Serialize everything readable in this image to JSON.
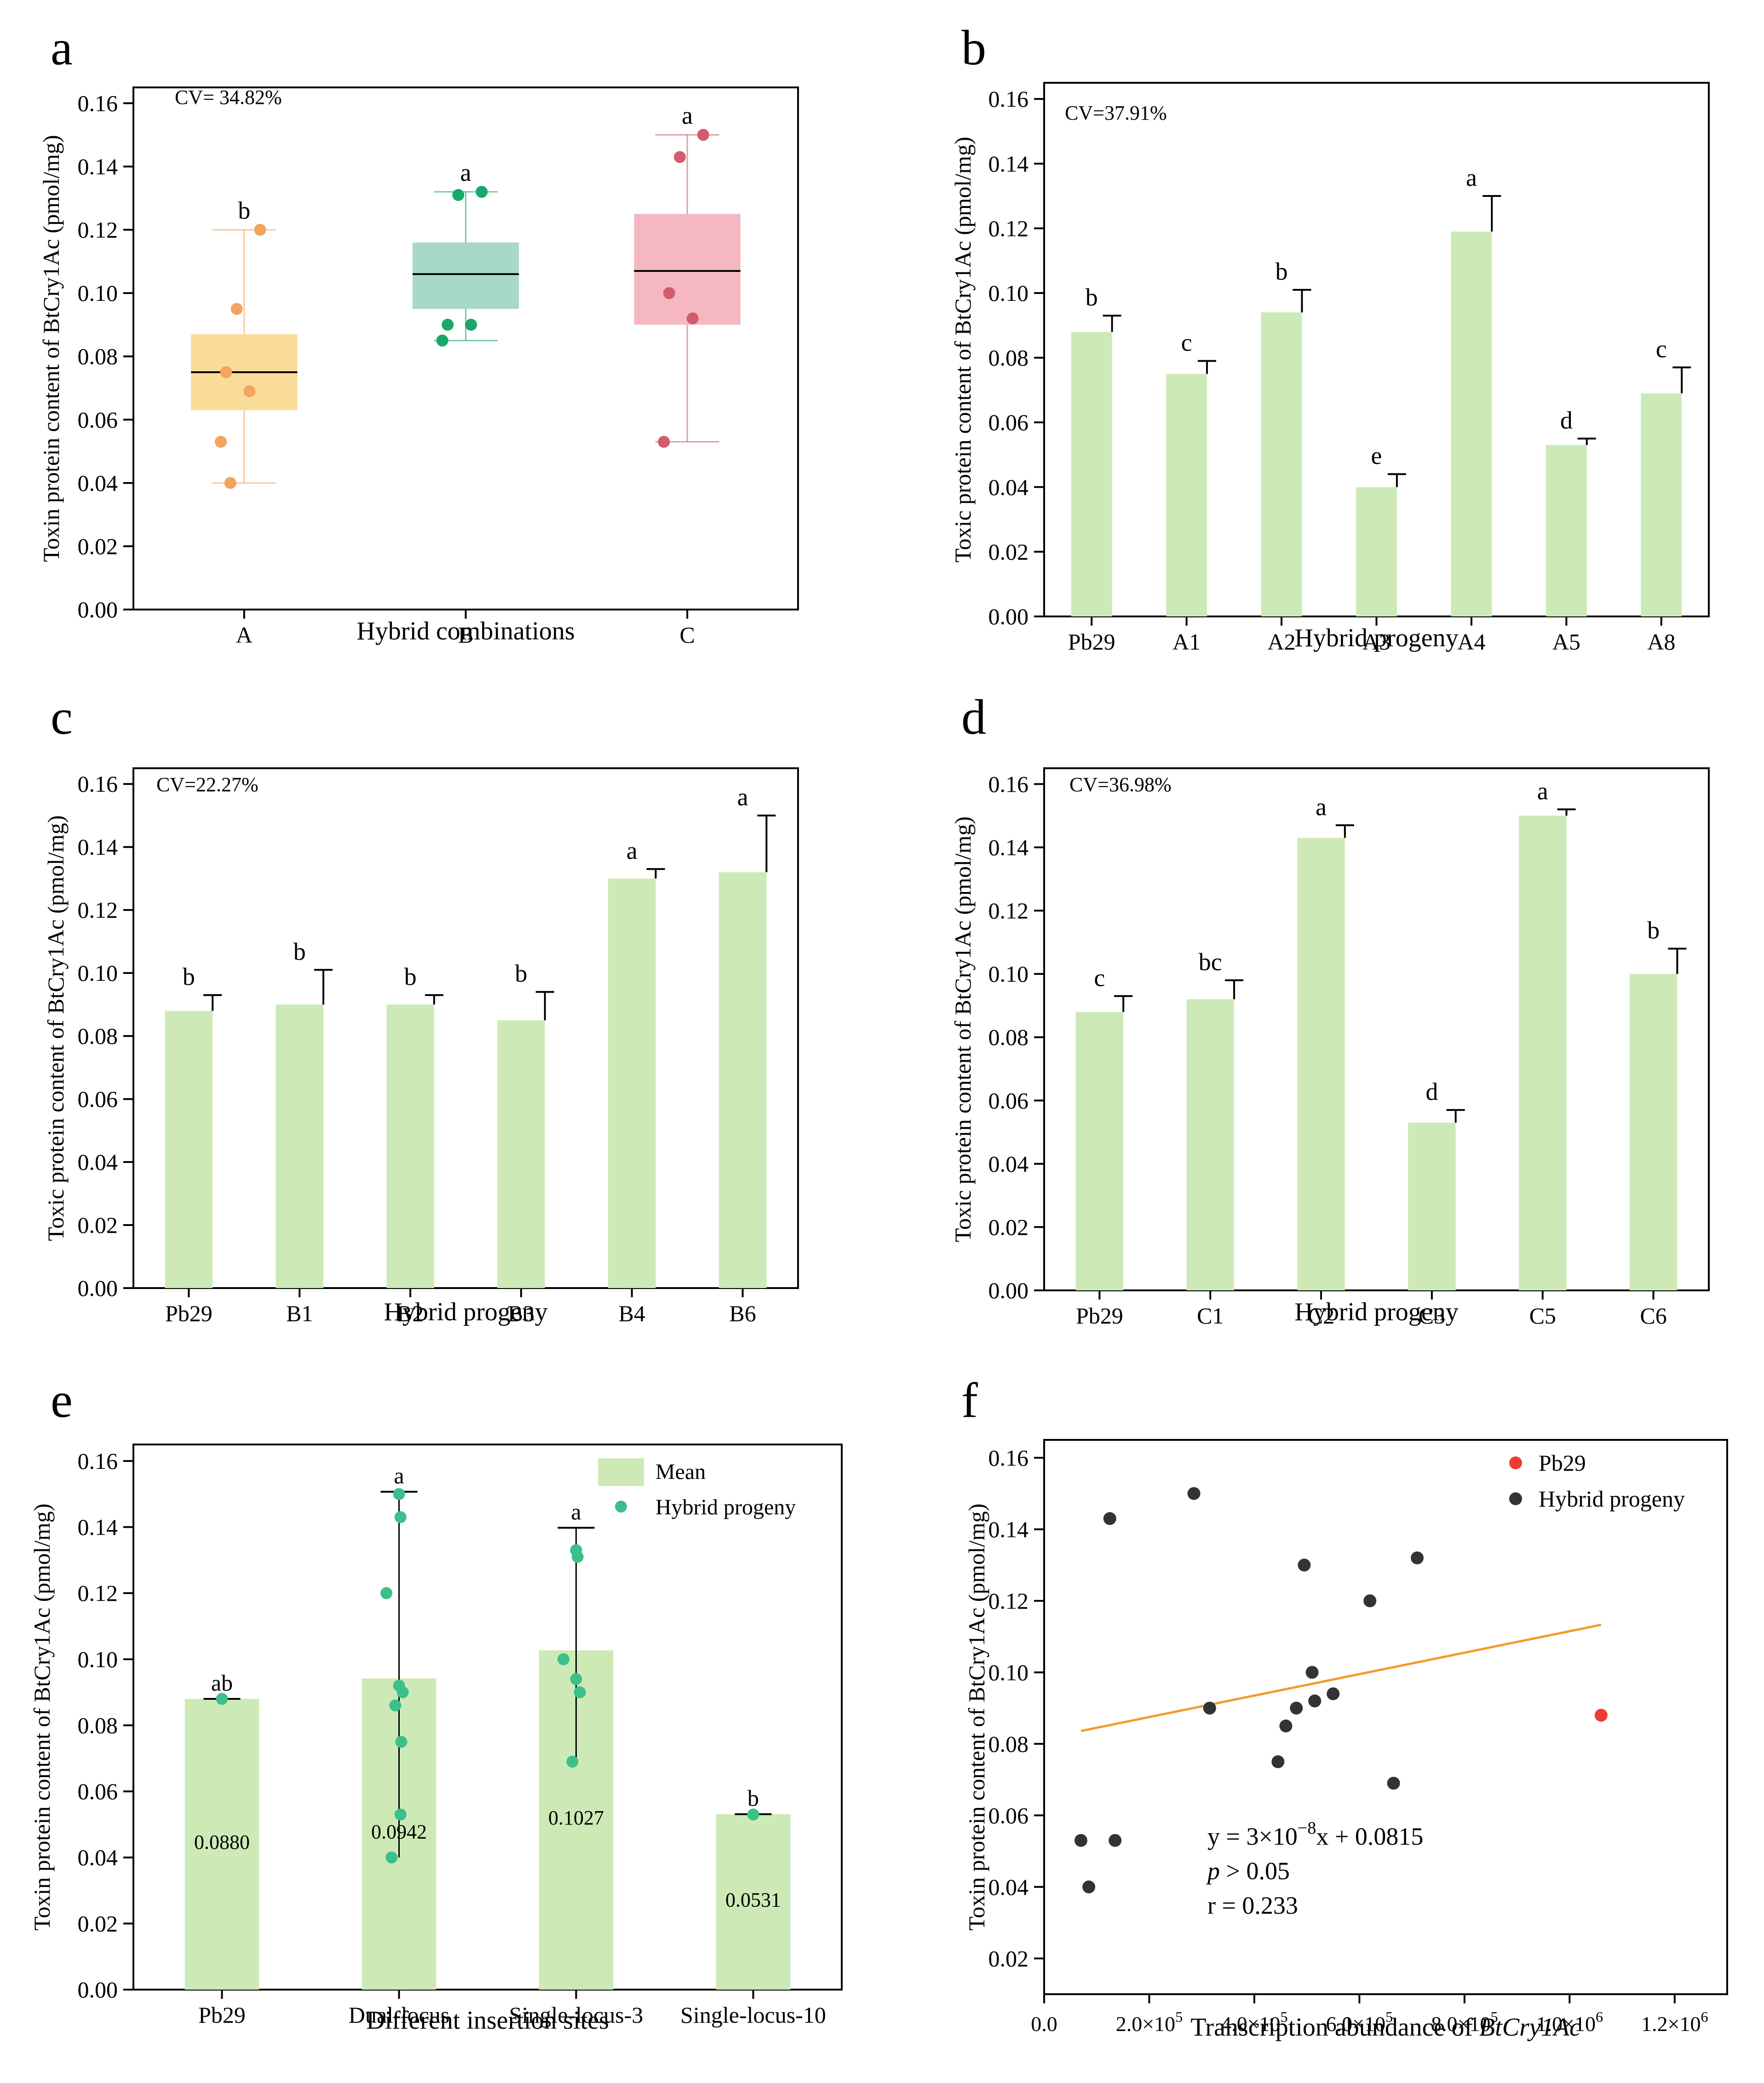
{
  "chart_data": [
    {
      "panel": "a",
      "type": "box",
      "ylabel": "Toxin protein content of BtCry1Ac (pmol/mg)",
      "xlabel": "Hybrid combinations",
      "cv": "CV= 34.82%",
      "ylim": [
        0,
        0.165
      ],
      "yticks": [
        0,
        0.02,
        0.04,
        0.06,
        0.08,
        0.1,
        0.12,
        0.14,
        0.16
      ],
      "ytick_labels": [
        "0.00",
        "0.02",
        "0.04",
        "0.06",
        "0.08",
        "0.10",
        "0.12",
        "0.14",
        "0.16"
      ],
      "categories": [
        "A",
        "B",
        "C"
      ],
      "boxes": [
        {
          "name": "A",
          "q1": 0.063,
          "median": 0.075,
          "q3": 0.087,
          "whisker_low": 0.04,
          "whisker_high": 0.12,
          "points": [
            0.12,
            0.095,
            0.075,
            0.069,
            0.053,
            0.04
          ],
          "letter": "b",
          "color": "#f9dc98",
          "point_color": "#f3a45e"
        },
        {
          "name": "B",
          "q1": 0.095,
          "median": 0.106,
          "q3": 0.116,
          "whisker_low": 0.085,
          "whisker_high": 0.132,
          "points": [
            0.132,
            0.131,
            0.09,
            0.09,
            0.085
          ],
          "letter": "a",
          "color": "#a8d9c6",
          "point_color": "#19a869"
        },
        {
          "name": "C",
          "q1": 0.09,
          "median": 0.107,
          "q3": 0.125,
          "whisker_low": 0.053,
          "whisker_high": 0.15,
          "points": [
            0.15,
            0.143,
            0.1,
            0.092,
            0.053
          ],
          "letter": "a",
          "color": "#f5b8c2",
          "point_color": "#cf5d6e"
        }
      ]
    },
    {
      "panel": "b",
      "type": "bar",
      "ylabel": "Toxic protein content of  BtCry1Ac (pmol/mg)",
      "xlabel": "Hybrid progeny",
      "cv": "CV=37.91%",
      "ylim": [
        0,
        0.165
      ],
      "yticks": [
        0,
        0.02,
        0.04,
        0.06,
        0.08,
        0.1,
        0.12,
        0.14,
        0.16
      ],
      "ytick_labels": [
        "0.00",
        "0.02",
        "0.04",
        "0.06",
        "0.08",
        "0.10",
        "0.12",
        "0.14",
        "0.16"
      ],
      "categories": [
        "Pb29",
        "A1",
        "A2",
        "A3",
        "A4",
        "A5",
        "A8"
      ],
      "values": [
        0.088,
        0.075,
        0.094,
        0.04,
        0.119,
        0.053,
        0.069
      ],
      "errors": [
        0.005,
        0.004,
        0.007,
        0.004,
        0.011,
        0.002,
        0.008
      ],
      "letters": [
        "b",
        "c",
        "b",
        "e",
        "a",
        "d",
        "c"
      ]
    },
    {
      "panel": "c",
      "type": "bar",
      "ylabel": "Toxic protein content of  BtCry1Ac (pmol/mg)",
      "xlabel": "Hybrid progeny",
      "cv": "CV=22.27%",
      "ylim": [
        0,
        0.165
      ],
      "yticks": [
        0,
        0.02,
        0.04,
        0.06,
        0.08,
        0.1,
        0.12,
        0.14,
        0.16
      ],
      "ytick_labels": [
        "0.00",
        "0.02",
        "0.04",
        "0.06",
        "0.08",
        "0.10",
        "0.12",
        "0.14",
        "0.16"
      ],
      "categories": [
        "Pb29",
        "B1",
        "B2",
        "B3",
        "B4",
        "B6"
      ],
      "values": [
        0.088,
        0.09,
        0.09,
        0.085,
        0.13,
        0.132
      ],
      "errors": [
        0.005,
        0.011,
        0.003,
        0.009,
        0.003,
        0.018
      ],
      "letters": [
        "b",
        "b",
        "b",
        "b",
        "a",
        "a"
      ]
    },
    {
      "panel": "d",
      "type": "bar",
      "ylabel": "Toxic protein content of  BtCry1Ac (pmol/mg)",
      "xlabel": "Hybrid progeny",
      "cv": "CV=36.98%",
      "ylim": [
        0,
        0.165
      ],
      "yticks": [
        0,
        0.02,
        0.04,
        0.06,
        0.08,
        0.1,
        0.12,
        0.14,
        0.16
      ],
      "ytick_labels": [
        "0.00",
        "0.02",
        "0.04",
        "0.06",
        "0.08",
        "0.10",
        "0.12",
        "0.14",
        "0.16"
      ],
      "categories": [
        "Pb29",
        "C1",
        "C2",
        "C3",
        "C5",
        "C6"
      ],
      "values": [
        0.088,
        0.092,
        0.143,
        0.053,
        0.15,
        0.1
      ],
      "errors": [
        0.005,
        0.006,
        0.004,
        0.004,
        0.002,
        0.008
      ],
      "letters": [
        "c",
        "bc",
        "a",
        "d",
        "a",
        "b"
      ]
    },
    {
      "panel": "e",
      "type": "bar",
      "ylabel": "Toxin protein content of BtCry1Ac (pmol/mg)",
      "xlabel": "Different insertion sites",
      "ylim": [
        0,
        0.165
      ],
      "yticks": [
        0,
        0.02,
        0.04,
        0.06,
        0.08,
        0.1,
        0.12,
        0.14,
        0.16
      ],
      "ytick_labels": [
        "0.00",
        "0.02",
        "0.04",
        "0.06",
        "0.08",
        "0.10",
        "0.12",
        "0.14",
        "0.16"
      ],
      "categories": [
        "Pb29",
        "Dual-locus",
        "Single-locus-3",
        "Single-locus-10"
      ],
      "values": [
        0.088,
        0.0942,
        0.1027,
        0.0531
      ],
      "value_labels": [
        "0.0880",
        "0.0942",
        "0.1027",
        "0.0531"
      ],
      "error_low": [
        0.088,
        0.04,
        0.069,
        0.0531
      ],
      "error_high": [
        0.088,
        0.1507,
        0.1398,
        0.0531
      ],
      "letters": [
        "ab",
        "a",
        "a",
        "b"
      ],
      "points": [
        [
          0.088
        ],
        [
          0.15,
          0.143,
          0.12,
          0.092,
          0.09,
          0.086,
          0.075,
          0.053,
          0.04
        ],
        [
          0.133,
          0.131,
          0.1,
          0.094,
          0.09,
          0.069
        ],
        [
          0.053
        ]
      ],
      "legend": {
        "mean": "Mean",
        "points": "Hybrid progeny"
      }
    },
    {
      "panel": "f",
      "type": "scatter",
      "ylabel": "Toxin protein content of  BtCry1Ac (pmol/mg)",
      "xlabel_prefix": "Transcription abundance of ",
      "xlabel_italic": "BtCry1Ac",
      "xlim": [
        0,
        1300000
      ],
      "ylim": [
        0.01,
        0.165
      ],
      "xtick_vals": [
        0,
        200000,
        400000,
        600000,
        800000,
        1000000,
        1200000
      ],
      "xtick_mant": [
        "0.0",
        "2.0×10",
        "4.0×10",
        "6.0×10",
        "8.0×10",
        "1.0×10",
        "1.2×10"
      ],
      "xtick_exp": [
        "",
        "5",
        "5",
        "5",
        "5",
        "6",
        "6"
      ],
      "yticks": [
        0.02,
        0.04,
        0.06,
        0.08,
        0.1,
        0.12,
        0.14,
        0.16
      ],
      "ytick_labels": [
        "0.02",
        "0.04",
        "0.06",
        "0.08",
        "0.10",
        "0.12",
        "0.14",
        "0.16"
      ],
      "series": [
        {
          "name": "Pb29",
          "color": "#ef3b36",
          "points": [
            [
              1060000,
              0.088
            ]
          ]
        },
        {
          "name": "Hybrid progeny",
          "color": "#333333",
          "points": [
            [
              70000,
              0.053
            ],
            [
              85000,
              0.04
            ],
            [
              125000,
              0.143
            ],
            [
              135000,
              0.053
            ],
            [
              285000,
              0.15
            ],
            [
              315000,
              0.09
            ],
            [
              445000,
              0.075
            ],
            [
              460000,
              0.085
            ],
            [
              480000,
              0.09
            ],
            [
              495000,
              0.13
            ],
            [
              510000,
              0.1
            ],
            [
              515000,
              0.092
            ],
            [
              550000,
              0.094
            ],
            [
              620000,
              0.12
            ],
            [
              665000,
              0.069
            ],
            [
              710000,
              0.132
            ]
          ]
        }
      ],
      "fit": {
        "slope": 3e-08,
        "intercept": 0.0815,
        "x_start": 70000,
        "x_end": 1060000,
        "color": "#f39a2b"
      },
      "equation_prefix": "y = 3×10",
      "equation_exp": "−8",
      "equation_suffix": "x + 0.0815",
      "p_label": "p",
      "p_text": " > 0.05",
      "r_text": "r = 0.233"
    }
  ]
}
